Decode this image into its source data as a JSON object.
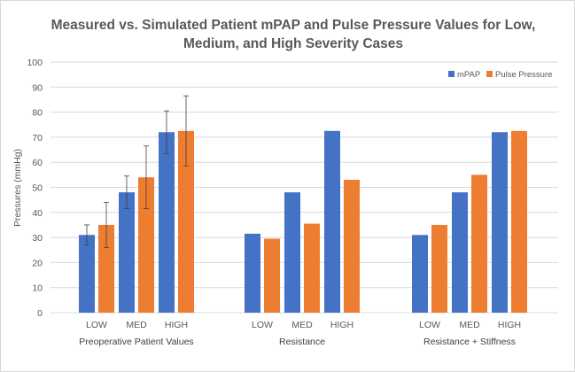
{
  "chart_data": {
    "type": "bar",
    "title_lines": [
      "Measured vs. Simulated Patient mPAP and Pulse Pressure Values for Low,",
      "Medium, and High Severity Cases"
    ],
    "ylabel": "Pressures (mmHg)",
    "xlabel": "",
    "ylim": [
      0,
      100
    ],
    "yticks": [
      0,
      10,
      20,
      30,
      40,
      50,
      60,
      70,
      80,
      90,
      100
    ],
    "grid": true,
    "legend_position": "top-right",
    "groups": [
      {
        "label": "Preoperative Patient Values",
        "categories": [
          "LOW",
          "MED",
          "HIGH"
        ],
        "series": [
          {
            "name": "mPAP",
            "values": [
              31,
              48,
              72
            ],
            "errors": [
              4,
              6.5,
              8.5
            ]
          },
          {
            "name": "Pulse Pressure",
            "values": [
              35,
              54,
              72.5
            ],
            "errors": [
              9,
              12.5,
              14
            ]
          }
        ]
      },
      {
        "label": "Resistance",
        "categories": [
          "LOW",
          "MED",
          "HIGH"
        ],
        "series": [
          {
            "name": "mPAP",
            "values": [
              31.5,
              48,
              72.5
            ]
          },
          {
            "name": "Pulse Pressure",
            "values": [
              29.5,
              35.5,
              53
            ]
          }
        ]
      },
      {
        "label": "Resistance + Stiffness",
        "categories": [
          "LOW",
          "MED",
          "HIGH"
        ],
        "series": [
          {
            "name": "mPAP",
            "values": [
              31,
              48,
              72
            ]
          },
          {
            "name": "Pulse Pressure",
            "values": [
              35,
              55,
              72.5
            ]
          }
        ]
      }
    ],
    "colors": {
      "mPAP": "#4472c4",
      "Pulse Pressure": "#ed7d31",
      "grid": "#d9d9d9",
      "error_bar": "#404040"
    }
  }
}
